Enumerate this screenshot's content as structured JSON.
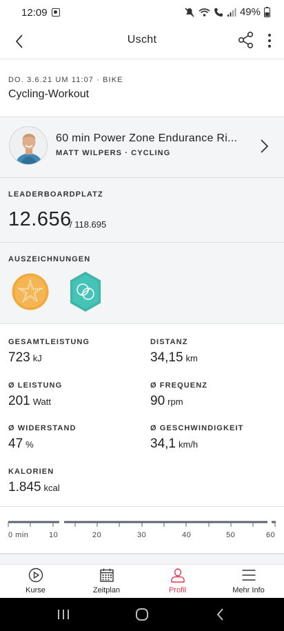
{
  "status_bar": {
    "time": "12:09",
    "battery": "49%"
  },
  "header": {
    "title": "Uscht",
    "back_icon": "chevron-left-icon",
    "share_icon": "share-icon",
    "more_icon": "more-vertical-icon"
  },
  "workout": {
    "meta": "DO. 3.6.21 UM 11:07 · BIKE",
    "title": "Cycling-Workout"
  },
  "class": {
    "title": "60 min Power Zone Endurance Ri...",
    "instructor_line": "MATT WILPERS · CYCLING"
  },
  "leaderboard": {
    "label": "LEADERBOARDPLATZ",
    "rank": "12.656",
    "total": "/ 118.695"
  },
  "awards": {
    "label": "AUSZEICHNUNGEN",
    "badges": [
      "star-badge-icon",
      "hexagon-badge-icon"
    ],
    "colors": {
      "star": "#f0a93b",
      "hex": "#3fb5a8"
    }
  },
  "metrics": [
    {
      "label": "GESAMTLEISTUNG",
      "value": "723",
      "unit": "kJ"
    },
    {
      "label": "DISTANZ",
      "value": "34,15",
      "unit": "km"
    },
    {
      "label": "Ø LEISTUNG",
      "value": "201",
      "unit": "Watt"
    },
    {
      "label": "Ø FREQUENZ",
      "value": "90",
      "unit": "rpm"
    },
    {
      "label": "Ø WIDERSTAND",
      "value": "47",
      "unit": "%"
    },
    {
      "label": "Ø GESCHWINDIGKEIT",
      "value": "34,1",
      "unit": "km/h"
    },
    {
      "label": "KALORIEN",
      "value": "1.845",
      "unit": "kcal"
    }
  ],
  "timeline": {
    "ticks": [
      "0 min",
      "10",
      "20",
      "30",
      "40",
      "50",
      "60"
    ]
  },
  "bottom_nav": {
    "items": [
      {
        "label": "Kurse",
        "icon": "play-circle-icon",
        "active": false
      },
      {
        "label": "Zeitplan",
        "icon": "calendar-icon",
        "active": false
      },
      {
        "label": "Profil",
        "icon": "person-icon",
        "active": true
      },
      {
        "label": "Mehr Info",
        "icon": "menu-icon",
        "active": false
      }
    ],
    "active_color": "#e3344d"
  }
}
